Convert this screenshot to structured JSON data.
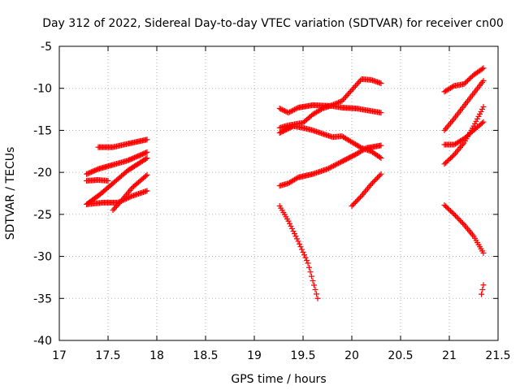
{
  "chart_data": {
    "type": "scatter",
    "title": "Day 312 of 2022, Sidereal Day-to-day VTEC variation (SDTVAR) for receiver cn00",
    "xlabel": "GPS time / hours",
    "ylabel": "SDTVAR / TECUs",
    "xlim": [
      17,
      21.5
    ],
    "ylim": [
      -40,
      -5
    ],
    "xticks": [
      17,
      17.5,
      18,
      18.5,
      19,
      19.5,
      20,
      20.5,
      21,
      21.5
    ],
    "xtick_labels": [
      "17",
      "17.5",
      "18",
      "18.5",
      "19",
      "19.5",
      "20",
      "20.5",
      "21",
      "21.5"
    ],
    "yticks": [
      -40,
      -35,
      -30,
      -25,
      -20,
      -15,
      -10,
      -5
    ],
    "ytick_labels": [
      "-40",
      "-35",
      "-30",
      "-25",
      "-20",
      "-15",
      "-10",
      "-5"
    ],
    "grid": true,
    "marker": "+",
    "color": "#ff0000",
    "series": [
      {
        "name": "s1",
        "points": [
          [
            17.4,
            -17.0
          ],
          [
            17.55,
            -17.0
          ],
          [
            17.7,
            -16.6
          ],
          [
            17.9,
            -16.1
          ]
        ]
      },
      {
        "name": "s2",
        "points": [
          [
            17.28,
            -20.2
          ],
          [
            17.4,
            -19.6
          ],
          [
            17.55,
            -19.1
          ],
          [
            17.7,
            -18.6
          ],
          [
            17.9,
            -17.6
          ]
        ]
      },
      {
        "name": "s3",
        "points": [
          [
            17.28,
            -21.0
          ],
          [
            17.4,
            -20.9
          ],
          [
            17.5,
            -21.0
          ]
        ]
      },
      {
        "name": "s4",
        "points": [
          [
            17.28,
            -23.8
          ],
          [
            17.42,
            -22.6
          ],
          [
            17.55,
            -21.3
          ],
          [
            17.7,
            -19.8
          ],
          [
            17.9,
            -18.3
          ]
        ]
      },
      {
        "name": "s5",
        "points": [
          [
            17.28,
            -23.8
          ],
          [
            17.45,
            -23.6
          ],
          [
            17.6,
            -23.6
          ],
          [
            17.75,
            -22.8
          ],
          [
            17.9,
            -22.2
          ]
        ]
      },
      {
        "name": "s6",
        "points": [
          [
            17.55,
            -24.5
          ],
          [
            17.65,
            -23.2
          ],
          [
            17.75,
            -21.8
          ],
          [
            17.9,
            -20.3
          ]
        ]
      },
      {
        "name": "s7",
        "points": [
          [
            19.26,
            -12.4
          ],
          [
            19.35,
            -12.9
          ],
          [
            19.45,
            -12.3
          ],
          [
            19.6,
            -12.0
          ],
          [
            19.8,
            -12.1
          ],
          [
            19.9,
            -12.3
          ],
          [
            20.05,
            -12.4
          ],
          [
            20.2,
            -12.7
          ],
          [
            20.3,
            -12.9
          ]
        ]
      },
      {
        "name": "s8",
        "points": [
          [
            19.26,
            -14.7
          ],
          [
            19.35,
            -14.4
          ],
          [
            19.5,
            -14.1
          ],
          [
            19.6,
            -13.1
          ],
          [
            19.7,
            -12.4
          ],
          [
            19.8,
            -12.0
          ],
          [
            19.9,
            -11.5
          ],
          [
            20.0,
            -10.2
          ],
          [
            20.1,
            -8.9
          ],
          [
            20.2,
            -9.0
          ],
          [
            20.3,
            -9.4
          ]
        ]
      },
      {
        "name": "s9",
        "points": [
          [
            19.26,
            -15.3
          ],
          [
            19.4,
            -14.5
          ],
          [
            19.5,
            -14.7
          ],
          [
            19.6,
            -15.0
          ],
          [
            19.7,
            -15.4
          ],
          [
            19.8,
            -15.8
          ],
          [
            19.9,
            -15.7
          ],
          [
            20.0,
            -16.4
          ],
          [
            20.1,
            -17.1
          ],
          [
            20.2,
            -17.5
          ],
          [
            20.3,
            -18.3
          ]
        ]
      },
      {
        "name": "s10",
        "points": [
          [
            19.26,
            -21.6
          ],
          [
            19.35,
            -21.3
          ],
          [
            19.45,
            -20.6
          ],
          [
            19.6,
            -20.2
          ],
          [
            19.75,
            -19.6
          ],
          [
            19.9,
            -18.7
          ],
          [
            20.05,
            -17.8
          ],
          [
            20.15,
            -17.1
          ],
          [
            20.3,
            -16.8
          ]
        ]
      },
      {
        "name": "s11",
        "points": [
          [
            20.0,
            -24.0
          ],
          [
            20.1,
            -22.8
          ],
          [
            20.2,
            -21.4
          ],
          [
            20.3,
            -20.2
          ]
        ]
      },
      {
        "name": "s12",
        "points": [
          [
            19.26,
            -24.0
          ],
          [
            19.35,
            -25.8
          ],
          [
            19.45,
            -28.2
          ],
          [
            19.55,
            -30.8
          ],
          [
            19.65,
            -35.0
          ]
        ]
      },
      {
        "name": "s13",
        "points": [
          [
            20.95,
            -10.4
          ],
          [
            21.05,
            -9.7
          ],
          [
            21.15,
            -9.5
          ],
          [
            21.25,
            -8.4
          ],
          [
            21.35,
            -7.6
          ]
        ]
      },
      {
        "name": "s14",
        "points": [
          [
            20.95,
            -15.0
          ],
          [
            21.05,
            -13.6
          ],
          [
            21.15,
            -12.1
          ],
          [
            21.25,
            -10.6
          ],
          [
            21.35,
            -9.1
          ]
        ]
      },
      {
        "name": "s15",
        "points": [
          [
            20.95,
            -16.7
          ],
          [
            21.05,
            -16.7
          ],
          [
            21.15,
            -16.0
          ],
          [
            21.25,
            -15.0
          ],
          [
            21.35,
            -14.0
          ]
        ]
      },
      {
        "name": "s16",
        "points": [
          [
            20.95,
            -19.0
          ],
          [
            21.05,
            -17.9
          ],
          [
            21.15,
            -16.5
          ],
          [
            21.25,
            -14.5
          ],
          [
            21.35,
            -12.2
          ]
        ]
      },
      {
        "name": "s17",
        "points": [
          [
            20.95,
            -23.9
          ],
          [
            21.05,
            -25.0
          ],
          [
            21.15,
            -26.2
          ],
          [
            21.25,
            -27.6
          ],
          [
            21.35,
            -29.6
          ]
        ]
      },
      {
        "name": "s18",
        "points": [
          [
            21.33,
            -34.5
          ],
          [
            21.35,
            -33.4
          ]
        ]
      }
    ]
  }
}
